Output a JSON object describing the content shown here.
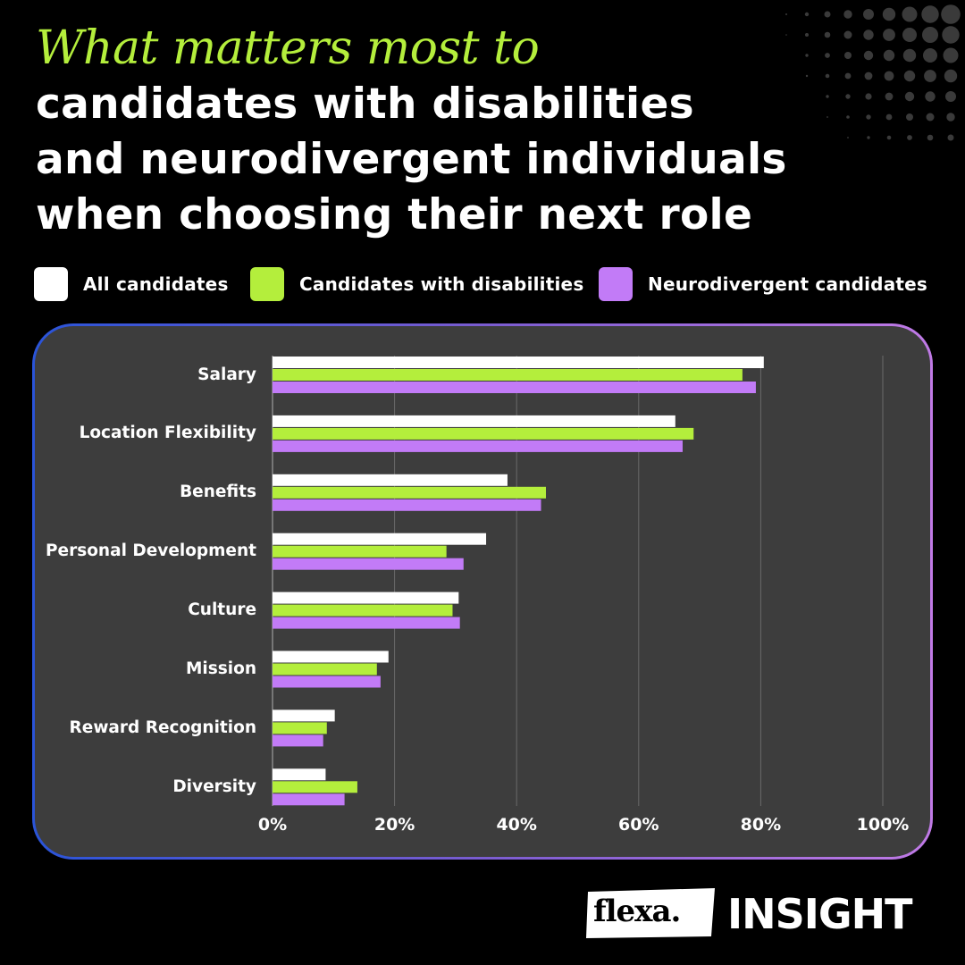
{
  "title": {
    "line1": "What matters most to",
    "line2": "candidates with disabilities",
    "line3": "and neurodivergent individuals",
    "line4": "when choosing their next role"
  },
  "colors": {
    "background": "#000000",
    "panel": "#3d3d3d",
    "accent_green": "#b4ee3c",
    "all_candidates": "#ffffff",
    "with_disabilities": "#b4ee3c",
    "neurodivergent": "#c27bf7"
  },
  "legend": [
    {
      "label": "All candidates",
      "color": "#ffffff"
    },
    {
      "label": "Candidates with disabilities",
      "color": "#b4ee3c"
    },
    {
      "label": "Neurodivergent candidates",
      "color": "#c27bf7"
    }
  ],
  "chart_data": {
    "type": "bar",
    "orientation": "horizontal",
    "categories": [
      "Salary",
      "Location Flexibility",
      "Benefits",
      "Personal Development",
      "Culture",
      "Mission",
      "Reward Recognition",
      "Diversity"
    ],
    "series": [
      {
        "name": "All candidates",
        "color": "#ffffff",
        "values": [
          80.5,
          66,
          38.5,
          35,
          30.5,
          19,
          10.2,
          8.7
        ]
      },
      {
        "name": "Candidates with disabilities",
        "color": "#b4ee3c",
        "values": [
          77,
          69,
          44.8,
          28.5,
          29.5,
          17.1,
          8.9,
          13.9
        ]
      },
      {
        "name": "Neurodivergent candidates",
        "color": "#c27bf7",
        "values": [
          79.2,
          67.2,
          44,
          31.3,
          30.7,
          17.7,
          8.3,
          11.8
        ]
      }
    ],
    "xlim": [
      0,
      100
    ],
    "xticks": [
      "0%",
      "20%",
      "40%",
      "60%",
      "80%",
      "100%"
    ],
    "grid": true,
    "legend_position": "top"
  },
  "brand": {
    "logo_text": "flexa.",
    "tag": "INSIGHT"
  }
}
